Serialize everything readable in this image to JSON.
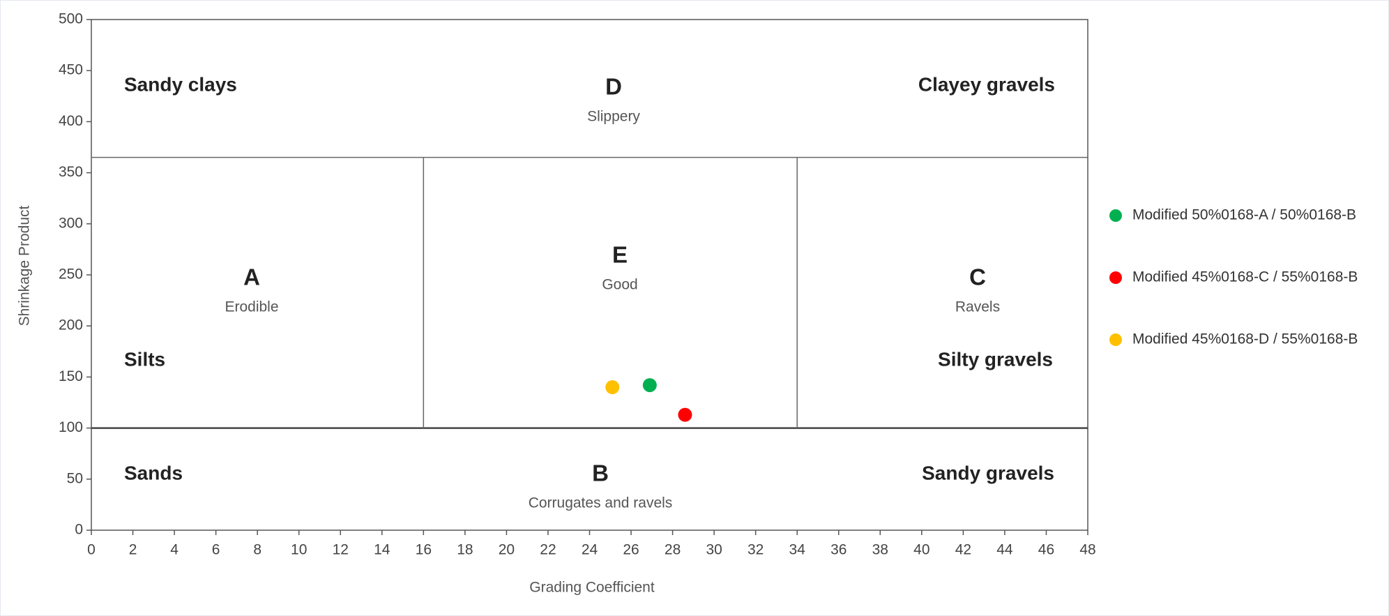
{
  "chart_data": {
    "type": "scatter",
    "xlabel": "Grading Coefficient",
    "ylabel": "Shrinkage Product",
    "xlim": [
      0,
      48
    ],
    "xticks": [
      0,
      2,
      4,
      6,
      8,
      10,
      12,
      14,
      16,
      18,
      20,
      22,
      24,
      26,
      28,
      30,
      32,
      34,
      36,
      38,
      40,
      42,
      44,
      46,
      48
    ],
    "ylim": [
      0,
      500
    ],
    "yticks": [
      0,
      50,
      100,
      150,
      200,
      250,
      300,
      350,
      400,
      450,
      500
    ],
    "grid": false,
    "boundaries": {
      "x": [
        16,
        34
      ],
      "y": [
        100,
        365
      ]
    },
    "regions": [
      {
        "letter": "D",
        "description": "Slippery"
      },
      {
        "letter": "A",
        "description": "Erodible"
      },
      {
        "letter": "E",
        "description": "Good"
      },
      {
        "letter": "C",
        "description": "Ravels"
      },
      {
        "letter": "B",
        "description": "Corrugates and ravels"
      }
    ],
    "soil_labels": [
      "Sandy clays",
      "Clayey gravels",
      "Silts",
      "Silty gravels",
      "Sands",
      "Sandy gravels"
    ],
    "legend": "right",
    "series": [
      {
        "name": "Modified 50%0168-A / 50%0168-B",
        "color": "#00b050",
        "x": [
          26.9
        ],
        "values": [
          142
        ]
      },
      {
        "name": "Modified 45%0168-C / 55%0168-B",
        "color": "#ff0000",
        "x": [
          28.6
        ],
        "values": [
          113
        ]
      },
      {
        "name": "Modified 45%0168-D / 55%0168-B",
        "color": "#ffc000",
        "x": [
          25.1
        ],
        "values": [
          140
        ]
      }
    ]
  }
}
